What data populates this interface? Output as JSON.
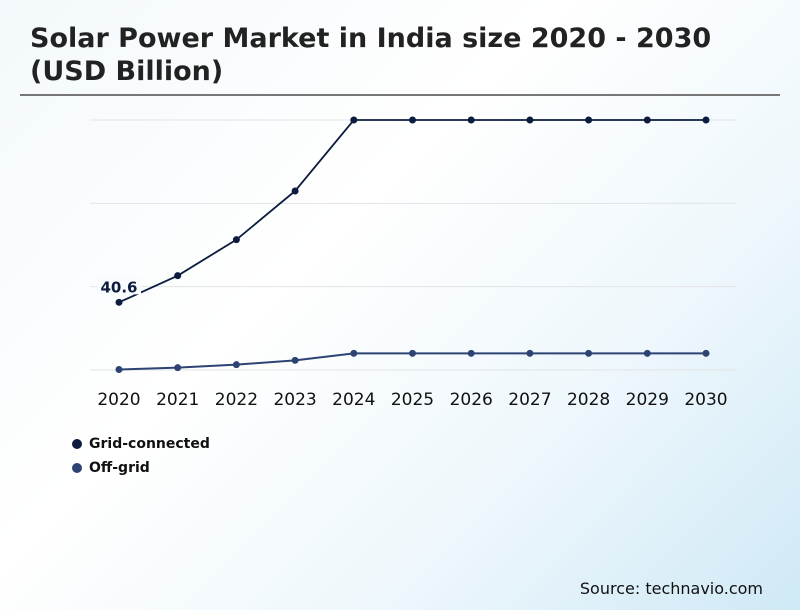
{
  "chart_data": {
    "type": "line",
    "title": "Solar Power Market in India size 2020 - 2030 (USD Billion)",
    "xlabel": "",
    "ylabel": "",
    "categories": [
      "2020",
      "2021",
      "2022",
      "2023",
      "2024",
      "2025",
      "2026",
      "2027",
      "2028",
      "2029",
      "2030"
    ],
    "ylim": [
      0,
      150
    ],
    "yticks": [
      0,
      50,
      100,
      150
    ],
    "grid": true,
    "legend_position": "bottom-left",
    "series": [
      {
        "name": "Grid-connected",
        "color": "#0d1b3e",
        "values": [
          40.6,
          56.6,
          78.2,
          107.4,
          150,
          150,
          150,
          150,
          150,
          150,
          150
        ]
      },
      {
        "name": "Off-grid",
        "color": "#2d4373",
        "values": [
          0.3,
          1.4,
          3.2,
          5.8,
          10,
          10,
          10,
          10,
          10,
          10,
          10
        ]
      }
    ],
    "annotations": [
      {
        "series": 0,
        "index": 0,
        "text": "40.6"
      }
    ]
  },
  "source": "Source: technavio.com"
}
